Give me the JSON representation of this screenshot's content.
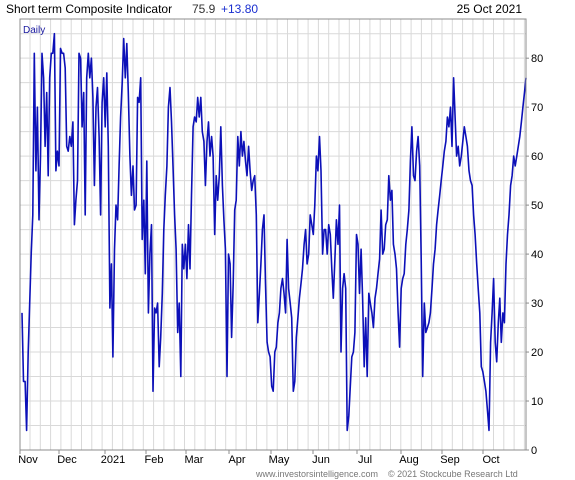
{
  "header": {
    "title": "Short term Composite Indicator",
    "value": "75.9",
    "change": "+13.80",
    "date": "25 Oct 2021"
  },
  "footer": {
    "source": "www.investorsintelligence.com",
    "copyright": "© 2021 Stockcube Research Ltd"
  },
  "colors": {
    "series": "#0c10b8",
    "change": "#1a2fd0",
    "grid": "#d9d9d9"
  },
  "chart_data": {
    "type": "line",
    "interval_label": "Daily",
    "x_labels": [
      "Nov",
      "Dec",
      "2021",
      "Feb",
      "Mar",
      "Apr",
      "May",
      "Jun",
      "Jul",
      "Aug",
      "Sep",
      "Oct"
    ],
    "y_ticks": [
      0,
      10,
      20,
      30,
      40,
      50,
      60,
      70,
      80
    ],
    "ylim": [
      0,
      88
    ],
    "y_axis_side": "right",
    "grid": true,
    "series": [
      {
        "values": [
          28,
          14,
          14,
          4,
          20,
          30,
          40,
          48,
          81,
          57,
          70,
          47,
          60,
          81,
          76,
          62,
          73,
          56,
          76,
          81,
          81,
          85,
          57,
          61,
          58,
          82,
          81,
          81,
          78,
          62,
          61,
          64,
          62,
          67,
          46,
          51,
          55,
          81,
          80,
          66,
          73,
          48,
          76,
          81,
          76,
          80,
          72,
          54,
          70,
          74,
          64,
          48,
          71,
          76,
          66,
          77,
          62,
          29,
          38,
          19,
          41,
          50,
          47,
          58,
          68,
          75,
          84,
          76,
          83,
          73,
          60,
          52,
          58,
          49,
          50,
          72,
          71,
          76,
          43,
          51,
          36,
          59,
          28,
          40,
          46,
          12,
          29,
          28,
          30,
          17,
          23,
          32,
          45,
          52,
          58,
          70,
          74,
          67,
          58,
          48,
          41,
          24,
          30,
          15,
          42,
          37,
          42,
          35,
          46,
          37,
          52,
          66,
          68,
          67,
          72,
          68,
          72,
          65,
          63,
          54,
          63,
          67,
          60,
          64,
          60,
          44,
          56,
          51,
          56,
          66,
          54,
          47,
          41,
          15,
          40,
          38,
          23,
          34,
          49,
          51,
          64,
          58,
          65,
          60,
          63,
          59,
          56,
          62,
          57,
          53,
          55,
          56,
          48,
          26,
          32,
          38,
          45,
          48,
          34,
          22,
          20,
          19,
          13,
          12,
          20,
          21,
          26,
          28,
          33,
          35,
          32,
          28,
          43,
          33,
          30,
          27,
          12,
          14,
          23,
          27,
          31,
          34,
          37,
          42,
          45,
          38,
          40,
          48,
          46,
          44,
          50,
          60,
          57,
          64,
          57,
          40,
          45,
          45,
          40,
          46,
          44,
          37,
          31,
          39,
          47,
          42,
          50,
          20,
          33,
          36,
          33,
          4,
          7,
          13,
          19,
          20,
          24,
          44,
          42,
          32,
          41,
          31,
          17,
          27,
          15,
          32,
          30,
          28,
          25,
          31,
          33,
          36,
          39,
          49,
          40,
          41,
          46,
          47,
          56,
          51,
          53,
          42,
          40,
          37,
          28,
          21,
          33,
          35,
          36,
          42,
          45,
          49,
          59,
          66,
          56,
          55,
          61,
          64,
          58,
          39,
          15,
          30,
          24,
          25,
          26,
          28,
          33,
          38,
          41,
          46,
          49,
          52,
          55,
          58,
          61,
          63,
          68,
          66,
          70,
          62,
          76,
          68,
          60,
          62,
          58,
          60,
          63,
          66,
          64,
          62,
          57,
          55,
          54,
          48,
          44,
          38,
          33,
          28,
          17,
          16,
          14,
          12,
          8,
          4,
          22,
          28,
          35,
          22,
          18,
          26,
          31,
          22,
          28,
          26,
          38,
          44,
          48,
          54,
          56,
          60,
          58,
          60,
          62,
          64,
          67,
          70,
          73,
          76
        ]
      }
    ]
  }
}
